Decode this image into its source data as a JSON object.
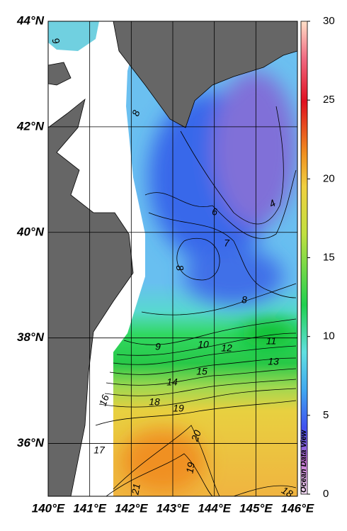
{
  "map": {
    "lat_ticks": [
      {
        "value": 44,
        "label": "44°N"
      },
      {
        "value": 42,
        "label": "42°N"
      },
      {
        "value": 40,
        "label": "40°N"
      },
      {
        "value": 38,
        "label": "38°N"
      },
      {
        "value": 36,
        "label": "36°N"
      }
    ],
    "lon_ticks": [
      {
        "value": 140,
        "label": "140°E"
      },
      {
        "value": 141,
        "label": "141°E"
      },
      {
        "value": 142,
        "label": "142°E"
      },
      {
        "value": 143,
        "label": "143°E"
      },
      {
        "value": 144,
        "label": "144°E"
      },
      {
        "value": 145,
        "label": "145°E"
      },
      {
        "value": 146,
        "label": "146°E"
      }
    ],
    "lat_range": [
      35,
      44
    ],
    "lon_range": [
      140,
      146
    ],
    "colorbar": {
      "range": [
        0,
        30
      ],
      "ticks": [
        0,
        5,
        10,
        15,
        20,
        25,
        30
      ]
    },
    "contour_labels": [
      9,
      8,
      6,
      7,
      4,
      8,
      8,
      9,
      10,
      12,
      11,
      13,
      15,
      14,
      18,
      19,
      20,
      19,
      21,
      18,
      16,
      17
    ],
    "credit": "Ocean Data View"
  }
}
